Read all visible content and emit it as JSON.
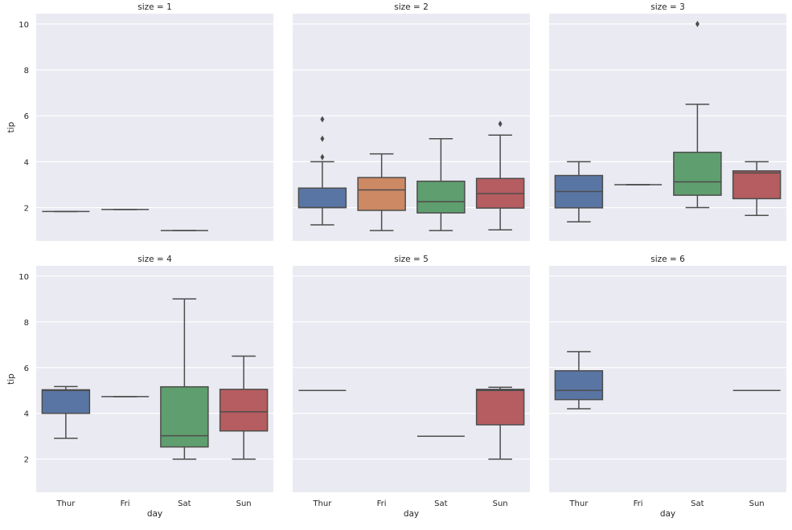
{
  "chart_data": {
    "type": "boxplot",
    "facet_titles": [
      "size = 1",
      "size = 2",
      "size = 3",
      "size = 4",
      "size = 5",
      "size = 6"
    ],
    "xlabel": "day",
    "ylabel": "tip",
    "categories": [
      "Thur",
      "Fri",
      "Sat",
      "Sun"
    ],
    "yticks": [
      2,
      4,
      6,
      8,
      10
    ],
    "ytick_labels": [
      "2",
      "4",
      "6",
      "8",
      "10"
    ],
    "ylim": [
      0.55,
      10.45
    ],
    "grid": true,
    "background_color": "#EAEAF2",
    "line_color": "#4d4d4d",
    "category_colors": [
      "#5975a4",
      "#cc8963",
      "#5f9e6e",
      "#b55d60"
    ],
    "facets": [
      {
        "title": "size = 1",
        "boxes": [
          {
            "day": "Thur",
            "whislo": 1.83,
            "q1": 1.83,
            "med": 1.83,
            "q3": 1.83,
            "whishi": 1.83,
            "fliers": []
          },
          {
            "day": "Fri",
            "whislo": 1.92,
            "q1": 1.92,
            "med": 1.92,
            "q3": 1.92,
            "whishi": 1.92,
            "fliers": []
          },
          {
            "day": "Sat",
            "whislo": 1.0,
            "q1": 1.0,
            "med": 1.0,
            "q3": 1.0,
            "whishi": 1.0,
            "fliers": []
          },
          null
        ]
      },
      {
        "title": "size = 2",
        "boxes": [
          {
            "day": "Thur",
            "whislo": 1.25,
            "q1": 2.0,
            "med": 2.0,
            "q3": 2.85,
            "whishi": 4.0,
            "fliers": [
              4.2,
              5.0,
              5.85
            ]
          },
          {
            "day": "Fri",
            "whislo": 1.0,
            "q1": 1.88,
            "med": 2.77,
            "q3": 3.31,
            "whishi": 4.34,
            "fliers": []
          },
          {
            "day": "Sat",
            "whislo": 1.0,
            "q1": 1.77,
            "med": 2.26,
            "q3": 3.15,
            "whishi": 5.0,
            "fliers": []
          },
          {
            "day": "Sun",
            "whislo": 1.03,
            "q1": 1.98,
            "med": 2.61,
            "q3": 3.27,
            "whishi": 5.16,
            "fliers": [
              5.65
            ]
          }
        ]
      },
      {
        "title": "size = 3",
        "boxes": [
          {
            "day": "Thur",
            "whislo": 1.38,
            "q1": 1.99,
            "med": 2.7,
            "q3": 3.4,
            "whishi": 4.0,
            "fliers": []
          },
          {
            "day": "Fri",
            "whislo": 3.0,
            "q1": 3.0,
            "med": 3.0,
            "q3": 3.0,
            "whishi": 3.0,
            "fliers": []
          },
          {
            "day": "Sat",
            "whislo": 2.0,
            "q1": 2.54,
            "med": 3.12,
            "q3": 4.41,
            "whishi": 6.5,
            "fliers": [
              10.0
            ]
          },
          {
            "day": "Sun",
            "whislo": 1.66,
            "q1": 2.39,
            "med": 3.51,
            "q3": 3.6,
            "whishi": 4.0,
            "fliers": []
          }
        ]
      },
      {
        "title": "size = 4",
        "boxes": [
          {
            "day": "Thur",
            "whislo": 2.91,
            "q1": 4.0,
            "med": 5.0,
            "q3": 5.03,
            "whishi": 5.17,
            "fliers": []
          },
          {
            "day": "Fri",
            "whislo": 4.73,
            "q1": 4.73,
            "med": 4.73,
            "q3": 4.73,
            "whishi": 4.73,
            "fliers": []
          },
          {
            "day": "Sat",
            "whislo": 2.0,
            "q1": 2.53,
            "med": 3.02,
            "q3": 5.16,
            "whishi": 9.0,
            "fliers": []
          },
          {
            "day": "Sun",
            "whislo": 2.0,
            "q1": 3.23,
            "med": 4.07,
            "q3": 5.05,
            "whishi": 6.5,
            "fliers": []
          }
        ]
      },
      {
        "title": "size = 5",
        "boxes": [
          {
            "day": "Thur",
            "whislo": 5.0,
            "q1": 5.0,
            "med": 5.0,
            "q3": 5.0,
            "whishi": 5.0,
            "fliers": []
          },
          null,
          {
            "day": "Sat",
            "whislo": 3.0,
            "q1": 3.0,
            "med": 3.0,
            "q3": 3.0,
            "whishi": 3.0,
            "fliers": []
          },
          {
            "day": "Sun",
            "whislo": 2.0,
            "q1": 3.5,
            "med": 5.0,
            "q3": 5.05,
            "whishi": 5.14,
            "fliers": []
          }
        ]
      },
      {
        "title": "size = 6",
        "boxes": [
          {
            "day": "Thur",
            "whislo": 4.2,
            "q1": 4.6,
            "med": 5.0,
            "q3": 5.86,
            "whishi": 6.7,
            "fliers": []
          },
          null,
          null,
          {
            "day": "Sun",
            "whislo": 5.0,
            "q1": 5.0,
            "med": 5.0,
            "q3": 5.0,
            "whishi": 5.0,
            "fliers": []
          }
        ]
      }
    ]
  }
}
